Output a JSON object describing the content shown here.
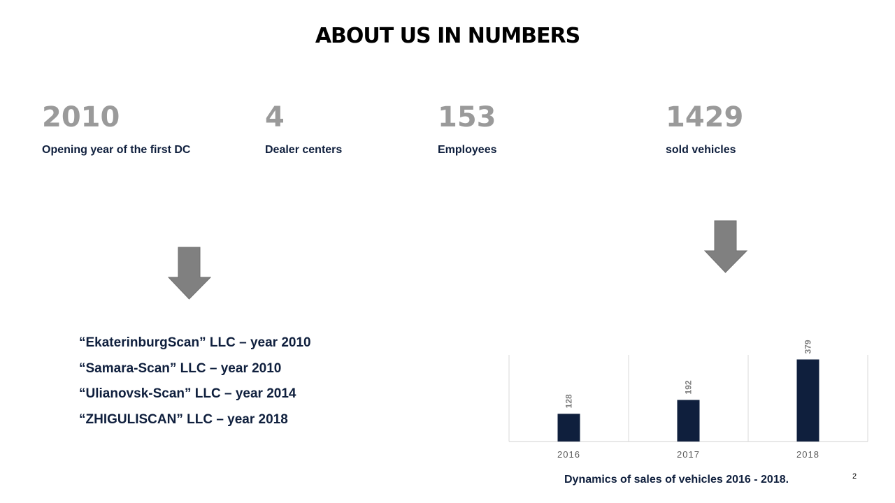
{
  "title": "ABOUT US IN NUMBERS",
  "stats": [
    {
      "value": "2010",
      "label": "Opening year of the first DC"
    },
    {
      "value": "4",
      "label": "Dealer centers"
    },
    {
      "value": "153",
      "label": "Employees"
    },
    {
      "value": "1429",
      "label": "sold vehicles"
    }
  ],
  "companies": [
    "“EkaterinburgScan” LLC – year 2010",
    "“Samara-Scan” LLC – year 2010",
    "“Ulianovsk-Scan” LLC – year 2014",
    "“ZHIGULISCAN” LLC – year 2018"
  ],
  "colors": {
    "bar": "#0f1f3d",
    "stat_number": "#9a9a9a",
    "arrow": "#808080"
  },
  "chart_data": {
    "type": "bar",
    "categories": [
      "2016",
      "2017",
      "2018"
    ],
    "values": [
      128,
      192,
      379
    ],
    "title": "",
    "xlabel": "",
    "ylabel": "",
    "ylim": [
      0,
      400
    ],
    "data_labels": true,
    "grid": false
  },
  "caption": "Dynamics of sales of vehicles 2016 - 2018.",
  "page_number": "2"
}
